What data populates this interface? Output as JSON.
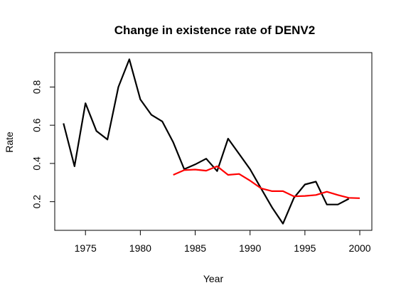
{
  "chart_data": {
    "type": "line",
    "title": "Change in existence rate of DENV2",
    "xlabel": "Year",
    "ylabel": "Rate",
    "xlim": [
      1972.2,
      2001.1
    ],
    "ylim": [
      0.05,
      0.98
    ],
    "x_ticks": [
      1975,
      1980,
      1985,
      1990,
      1995,
      2000
    ],
    "y_ticks": [
      0.2,
      0.4,
      0.6,
      0.8
    ],
    "x_tick_labels": [
      "1975",
      "1980",
      "1985",
      "1990",
      "1995",
      "2000"
    ],
    "y_tick_labels": [
      "0.2",
      "0.4",
      "0.6",
      "0.8"
    ],
    "grid": false,
    "series": [
      {
        "color": "#000000",
        "x": [
          1973,
          1974,
          1975,
          1976,
          1977,
          1978,
          1979,
          1980,
          1981,
          1982,
          1983,
          1984,
          1985,
          1986,
          1987,
          1988,
          1989,
          1990,
          1991,
          1992,
          1993,
          1994,
          1995,
          1996,
          1997,
          1998,
          1999
        ],
        "values": [
          0.61,
          0.385,
          0.715,
          0.57,
          0.525,
          0.8,
          0.945,
          0.735,
          0.655,
          0.62,
          0.51,
          0.37,
          0.395,
          0.425,
          0.36,
          0.53,
          0.45,
          0.37,
          0.27,
          0.17,
          0.085,
          0.22,
          0.29,
          0.305,
          0.185,
          0.185,
          0.215
        ]
      },
      {
        "color": "#ff0000",
        "x": [
          1983,
          1984,
          1985,
          1986,
          1987,
          1988,
          1989,
          1990,
          1991,
          1992,
          1993,
          1994,
          1995,
          1996,
          1997,
          1998,
          1999,
          2000
        ],
        "values": [
          0.34,
          0.365,
          0.368,
          0.362,
          0.385,
          0.34,
          0.345,
          0.31,
          0.27,
          0.255,
          0.255,
          0.228,
          0.23,
          0.235,
          0.252,
          0.235,
          0.22,
          0.218
        ]
      }
    ]
  }
}
